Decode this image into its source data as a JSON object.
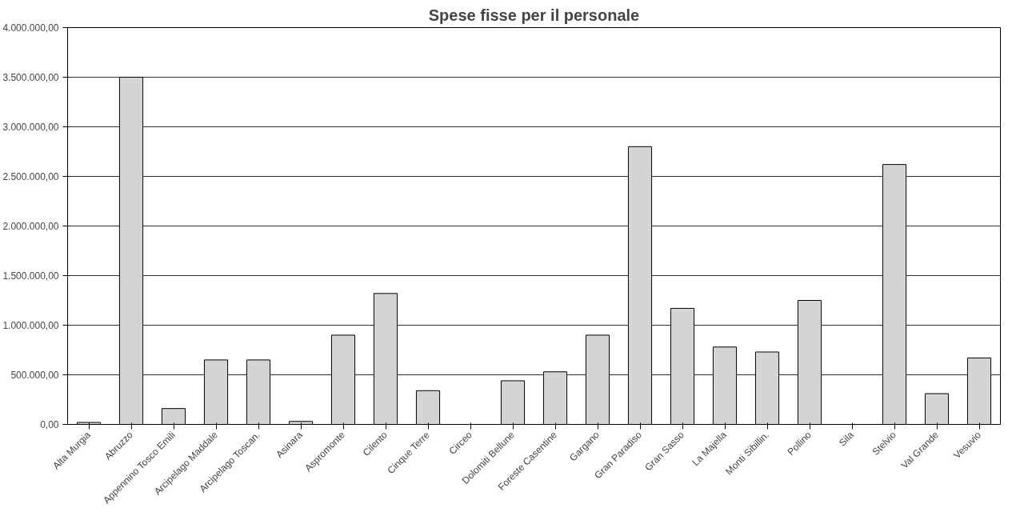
{
  "chart_data": {
    "type": "bar",
    "title": "Spese fisse per il personale",
    "categories": [
      "Alta Murgia",
      "Abruzzo",
      "Appennino Tosco Emili",
      "Arcipelago Maddale",
      "Arcipelago Toscan.",
      "Asinara",
      "Aspromonte",
      "Cilento",
      "Cinque Terre",
      "Circeo",
      "Dolomiti Bellune",
      "Foreste Casentine",
      "Gargano",
      "Gran Paradiso",
      "Gran Sasso",
      "La Majella",
      "Monti Sibillin.",
      "Pollino",
      "Sila",
      "Stelvio",
      "Val Grande",
      "Vesuvio"
    ],
    "values": [
      20000,
      3500000,
      160000,
      650000,
      650000,
      30000,
      900000,
      1320000,
      340000,
      0,
      440000,
      530000,
      900000,
      2800000,
      1170000,
      780000,
      730000,
      1250000,
      0,
      2620000,
      310000,
      670000
    ],
    "color": "#d4d4d4",
    "ylim": [
      0,
      4000000
    ],
    "yticks": [
      {
        "value": 0,
        "label": "0,00"
      },
      {
        "value": 500000,
        "label": "500.000,00"
      },
      {
        "value": 1000000,
        "label": "1.000.000,00"
      },
      {
        "value": 1500000,
        "label": "1.500.000,00"
      },
      {
        "value": 2000000,
        "label": "2.000.000,00"
      },
      {
        "value": 2500000,
        "label": "2.500.000,00"
      },
      {
        "value": 3000000,
        "label": "3.000.000,00"
      },
      {
        "value": 3500000,
        "label": "3.500.000,00"
      },
      {
        "value": 4000000,
        "label": "4.000.000,00"
      }
    ],
    "grid": "y"
  }
}
